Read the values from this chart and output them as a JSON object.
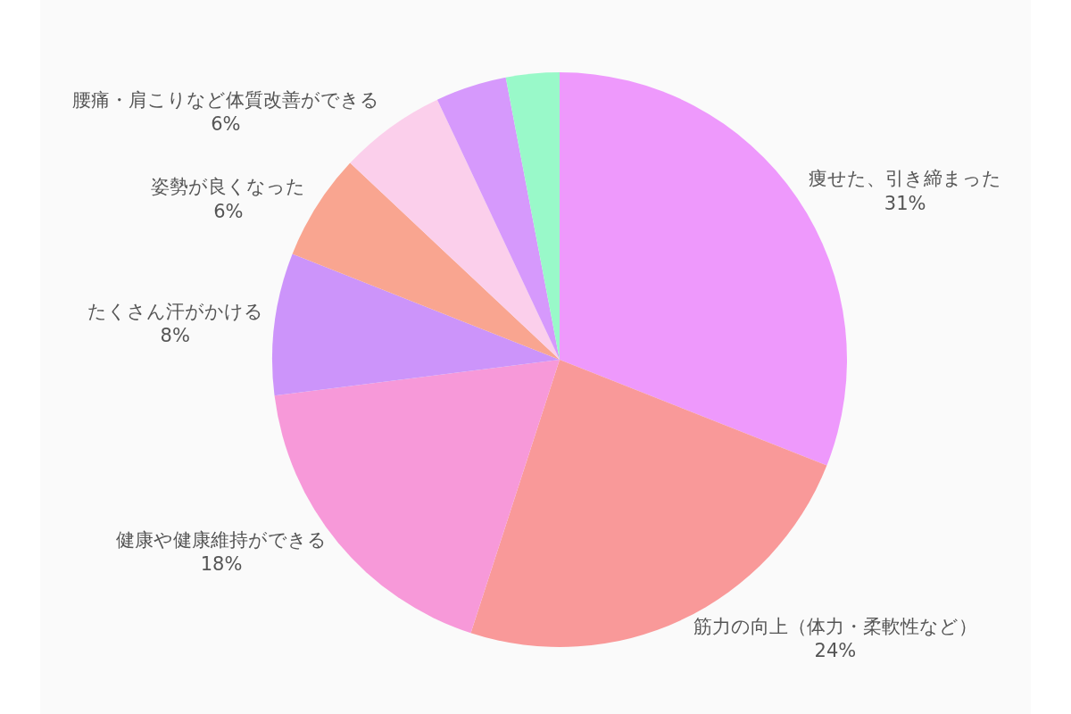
{
  "chart_data": {
    "type": "pie",
    "categories": [
      "痩せた、引き締まった",
      "筋力の向上（体力・柔軟性など）",
      "健康や健康維持ができる",
      "たくさん汗がかける",
      "姿勢が良くなった",
      "腰痛・肩こりなど体質改善ができる",
      null,
      null
    ],
    "values": [
      31,
      24,
      18,
      8,
      6,
      6,
      4,
      3
    ],
    "value_labels": [
      "31%",
      "24%",
      "18%",
      "8%",
      "6%",
      "6%",
      null,
      null
    ],
    "colors": [
      "#ee99fc",
      "#f99999",
      "#f799d9",
      "#cc94fa",
      "#f9a590",
      "#fbcfeb",
      "#d699fc",
      "#99f9c9"
    ]
  }
}
